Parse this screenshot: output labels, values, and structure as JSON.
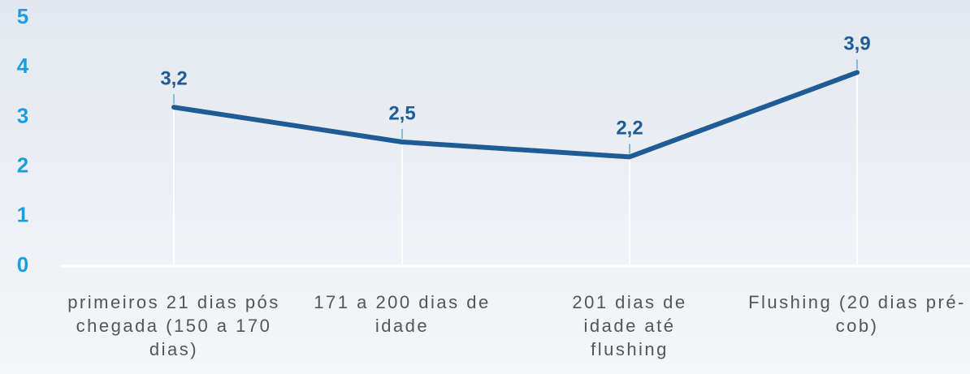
{
  "chart_data": {
    "type": "line",
    "categories": [
      "primeiros 21 dias pós chegada (150 a 170 dias)",
      "171 a 200 dias de idade",
      "201 dias de idade até flushing",
      "Flushing (20 dias pré-cob)"
    ],
    "series": [
      {
        "color": "#1f5c96",
        "values": [
          3.2,
          2.5,
          2.2,
          3.9
        ],
        "value_labels": [
          "3,2",
          "2,5",
          "2,2",
          "3,9"
        ]
      }
    ],
    "ylim": [
      0,
      5
    ],
    "yticks": [
      0,
      1,
      2,
      3,
      4,
      5
    ]
  }
}
